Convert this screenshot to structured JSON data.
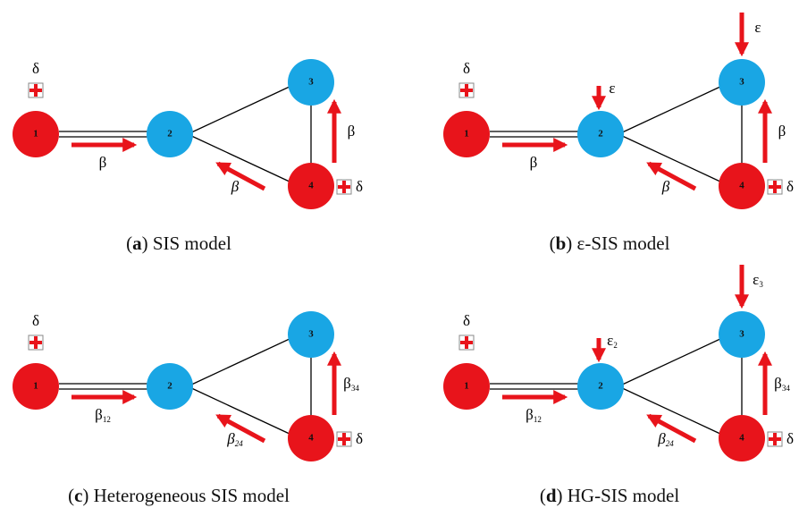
{
  "panels": [
    {
      "caption": {
        "open": "(",
        "letter": "a",
        "rest": ") SIS model"
      },
      "nodes": [
        "1",
        "2",
        "3",
        "4"
      ],
      "labels": {
        "delta_1": {
          "text": "δ"
        },
        "beta_12": {
          "text": "β"
        },
        "beta_24": {
          "text": "β"
        },
        "beta_34": {
          "text": "β"
        },
        "delta_4": {
          "text": "δ"
        }
      }
    },
    {
      "caption": {
        "open": "(",
        "letter": "b",
        "rest": ") ε-SIS model"
      },
      "nodes": [
        "1",
        "2",
        "3",
        "4"
      ],
      "labels": {
        "delta_1": {
          "text": "δ"
        },
        "beta_12": {
          "text": "β"
        },
        "beta_24": {
          "text": "β"
        },
        "beta_34": {
          "text": "β"
        },
        "delta_4": {
          "text": "δ"
        },
        "eps_2": {
          "text": "ε"
        },
        "eps_3": {
          "text": "ε"
        }
      }
    },
    {
      "caption": {
        "open": "(",
        "letter": "c",
        "rest": ") Heterogeneous SIS model"
      },
      "nodes": [
        "1",
        "2",
        "3",
        "4"
      ],
      "labels": {
        "delta_1": {
          "text": "δ"
        },
        "beta_12": {
          "text": "β",
          "sub": "12"
        },
        "beta_24": {
          "text": "β",
          "sub": "24"
        },
        "beta_34": {
          "text": "β",
          "sub": "34"
        },
        "delta_4": {
          "text": "δ"
        }
      }
    },
    {
      "caption": {
        "open": "(",
        "letter": "d",
        "rest": ") HG-SIS model"
      },
      "nodes": [
        "1",
        "2",
        "3",
        "4"
      ],
      "labels": {
        "delta_1": {
          "text": "δ"
        },
        "beta_12": {
          "text": "β",
          "sub": "12"
        },
        "beta_24": {
          "text": "β",
          "sub": "24"
        },
        "beta_34": {
          "text": "β",
          "sub": "34"
        },
        "delta_4": {
          "text": "δ"
        },
        "eps_2": {
          "text": "ε",
          "sub": "2"
        },
        "eps_3": {
          "text": "ε",
          "sub": "3"
        }
      }
    }
  ]
}
